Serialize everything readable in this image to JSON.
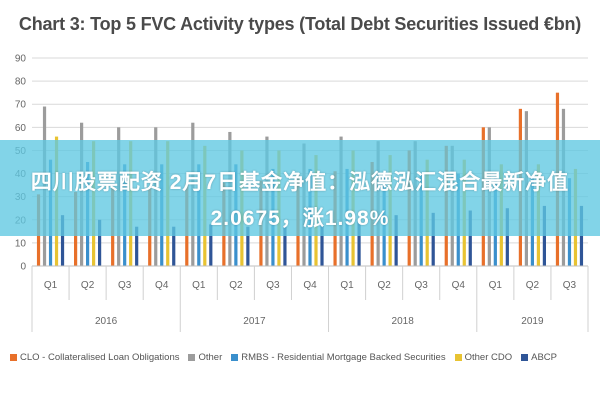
{
  "overlay": {
    "line1": "四川股票配资 2月7日基金净值：泓德泓汇混合最新净值",
    "line2": "2.0675，涨1.98%"
  },
  "chart_data": {
    "type": "bar",
    "title": "Chart 3: Top 5 FVC Activity types (Total Debt Securities Issued €bn)",
    "xlabel": "",
    "ylabel": "",
    "ylim": [
      0,
      90
    ],
    "yticks": [
      0,
      10,
      20,
      30,
      40,
      50,
      60,
      70,
      80,
      90
    ],
    "grid": true,
    "legend_position": "bottom",
    "categories": [
      "Q1",
      "Q2",
      "Q3",
      "Q4",
      "Q1",
      "Q2",
      "Q3",
      "Q4",
      "Q1",
      "Q2",
      "Q3",
      "Q4",
      "Q1",
      "Q2",
      "Q3"
    ],
    "years": [
      {
        "label": "2016",
        "count": 4
      },
      {
        "label": "2017",
        "count": 4
      },
      {
        "label": "2018",
        "count": 4
      },
      {
        "label": "2019",
        "count": 3
      }
    ],
    "series": [
      {
        "name": "CLO - Collateralised Loan Obligations",
        "color": "#e8702a",
        "values": [
          31,
          32,
          34,
          34,
          36,
          36,
          37,
          40,
          41,
          45,
          50,
          52,
          60,
          68,
          75
        ]
      },
      {
        "name": "Other",
        "color": "#9c9c9c",
        "values": [
          69,
          62,
          60,
          60,
          62,
          58,
          56,
          53,
          56,
          54,
          54,
          52,
          60,
          67,
          68
        ]
      },
      {
        "name": "RMBS - Residential Mortgage Backed Securities",
        "color": "#3a8fcc",
        "values": [
          46,
          45,
          44,
          44,
          44,
          44,
          42,
          42,
          42,
          40,
          40,
          40,
          38,
          38,
          38
        ]
      },
      {
        "name": "Other CDO",
        "color": "#e8c332",
        "values": [
          56,
          54,
          54,
          54,
          52,
          50,
          50,
          48,
          50,
          48,
          46,
          46,
          44,
          44,
          42
        ]
      },
      {
        "name": "ABCP",
        "color": "#2f5597",
        "values": [
          22,
          20,
          17,
          17,
          18,
          17,
          17,
          18,
          20,
          22,
          23,
          24,
          25,
          26,
          26
        ]
      }
    ]
  }
}
